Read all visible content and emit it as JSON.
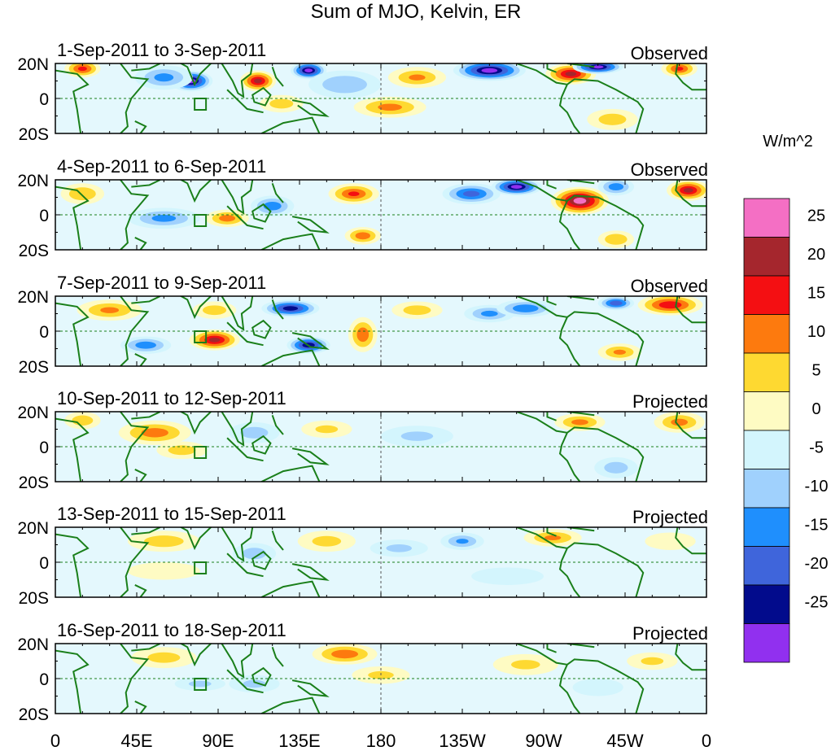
{
  "chart_data": {
    "type": "heatmap",
    "title": "Sum of MJO, Kelvin, ER",
    "units_label": "W/m^2",
    "x_ticks": [
      "0",
      "45E",
      "90E",
      "135E",
      "180",
      "135W",
      "90W",
      "45W",
      "0"
    ],
    "y_ticks": [
      "20N",
      "0",
      "20S"
    ],
    "x_range_deg_east": [
      0,
      360
    ],
    "y_range_deg": [
      -20,
      20
    ],
    "colorbar": {
      "labels": [
        "25",
        "20",
        "15",
        "10",
        "5",
        "0",
        "-5",
        "-10",
        "-15",
        "-20",
        "-25"
      ],
      "colors": [
        "#f46fc4",
        "#a5262d",
        "#f40f12",
        "#fd7a0e",
        "#fed931",
        "#fefbc3",
        "#d3f5fd",
        "#a0d1fd",
        "#1f8ffd",
        "#3f65db",
        "#020b8c",
        "#9130ef"
      ]
    },
    "panels": [
      {
        "label": "1-Sep-2011 to 3-Sep-2011",
        "kind": "Observed",
        "anomalies": [
          {
            "lon": 15,
            "lat": 17,
            "rx": 10,
            "ry": 5,
            "v": 17
          },
          {
            "lon": 75,
            "lat": 10,
            "rx": 12,
            "ry": 6,
            "v": -28
          },
          {
            "lon": 60,
            "lat": 12,
            "rx": 16,
            "ry": 7,
            "v": -12
          },
          {
            "lon": 112,
            "lat": 10,
            "rx": 10,
            "ry": 6,
            "v": 22
          },
          {
            "lon": 125,
            "lat": -3,
            "rx": 12,
            "ry": 5,
            "v": 8
          },
          {
            "lon": 140,
            "lat": 16,
            "rx": 10,
            "ry": 5,
            "v": -28
          },
          {
            "lon": 160,
            "lat": 8,
            "rx": 20,
            "ry": 8,
            "v": -10
          },
          {
            "lon": 185,
            "lat": -5,
            "rx": 20,
            "ry": 6,
            "v": 12
          },
          {
            "lon": 200,
            "lat": 12,
            "rx": 16,
            "ry": 6,
            "v": 11
          },
          {
            "lon": 240,
            "lat": 16,
            "rx": 20,
            "ry": 6,
            "v": -28
          },
          {
            "lon": 285,
            "lat": 14,
            "rx": 14,
            "ry": 6,
            "v": 22
          },
          {
            "lon": 300,
            "lat": 18,
            "rx": 14,
            "ry": 4,
            "v": -28
          },
          {
            "lon": 308,
            "lat": -12,
            "rx": 14,
            "ry": 6,
            "v": 8
          },
          {
            "lon": 345,
            "lat": 17,
            "rx": 10,
            "ry": 5,
            "v": 16
          }
        ]
      },
      {
        "label": "4-Sep-2011 to 6-Sep-2011",
        "kind": "Observed",
        "anomalies": [
          {
            "lon": 15,
            "lat": 12,
            "rx": 12,
            "ry": 6,
            "v": 10
          },
          {
            "lon": 60,
            "lat": -2,
            "rx": 20,
            "ry": 6,
            "v": -12
          },
          {
            "lon": 95,
            "lat": -2,
            "rx": 12,
            "ry": 5,
            "v": 13
          },
          {
            "lon": 120,
            "lat": 5,
            "rx": 12,
            "ry": 6,
            "v": -14
          },
          {
            "lon": 165,
            "lat": 12,
            "rx": 14,
            "ry": 6,
            "v": 16
          },
          {
            "lon": 170,
            "lat": -12,
            "rx": 10,
            "ry": 5,
            "v": 14
          },
          {
            "lon": 230,
            "lat": 12,
            "rx": 16,
            "ry": 6,
            "v": -18
          },
          {
            "lon": 255,
            "lat": 16,
            "rx": 14,
            "ry": 5,
            "v": -28
          },
          {
            "lon": 290,
            "lat": 8,
            "rx": 16,
            "ry": 8,
            "v": 28
          },
          {
            "lon": 310,
            "lat": 16,
            "rx": 10,
            "ry": 5,
            "v": -14
          },
          {
            "lon": 310,
            "lat": -14,
            "rx": 10,
            "ry": 5,
            "v": 10
          },
          {
            "lon": 350,
            "lat": 14,
            "rx": 12,
            "ry": 6,
            "v": 22
          }
        ]
      },
      {
        "label": "7-Sep-2011 to 9-Sep-2011",
        "kind": "Observed",
        "anomalies": [
          {
            "lon": 30,
            "lat": 12,
            "rx": 18,
            "ry": 6,
            "v": 11
          },
          {
            "lon": 50,
            "lat": -8,
            "rx": 14,
            "ry": 5,
            "v": -14
          },
          {
            "lon": 88,
            "lat": -5,
            "rx": 14,
            "ry": 6,
            "v": 22
          },
          {
            "lon": 88,
            "lat": 12,
            "rx": 12,
            "ry": 5,
            "v": 8
          },
          {
            "lon": 130,
            "lat": 13,
            "rx": 16,
            "ry": 5,
            "v": -24
          },
          {
            "lon": 140,
            "lat": -8,
            "rx": 12,
            "ry": 5,
            "v": -25
          },
          {
            "lon": 170,
            "lat": -2,
            "rx": 8,
            "ry": 10,
            "v": 14
          },
          {
            "lon": 200,
            "lat": 12,
            "rx": 14,
            "ry": 5,
            "v": 8
          },
          {
            "lon": 240,
            "lat": 10,
            "rx": 14,
            "ry": 5,
            "v": -12
          },
          {
            "lon": 260,
            "lat": 13,
            "rx": 16,
            "ry": 5,
            "v": -15
          },
          {
            "lon": 310,
            "lat": 16,
            "rx": 10,
            "ry": 4,
            "v": -20
          },
          {
            "lon": 312,
            "lat": -12,
            "rx": 12,
            "ry": 5,
            "v": 11
          },
          {
            "lon": 340,
            "lat": 15,
            "rx": 18,
            "ry": 6,
            "v": 20
          }
        ]
      },
      {
        "label": "10-Sep-2011 to 12-Sep-2011",
        "kind": "Projected",
        "anomalies": [
          {
            "lon": 15,
            "lat": 15,
            "rx": 10,
            "ry": 5,
            "v": 9
          },
          {
            "lon": 55,
            "lat": 8,
            "rx": 20,
            "ry": 7,
            "v": 13
          },
          {
            "lon": 70,
            "lat": -2,
            "rx": 14,
            "ry": 5,
            "v": 8
          },
          {
            "lon": 110,
            "lat": 8,
            "rx": 14,
            "ry": 6,
            "v": -8
          },
          {
            "lon": 150,
            "lat": 10,
            "rx": 14,
            "ry": 5,
            "v": 6
          },
          {
            "lon": 200,
            "lat": 6,
            "rx": 20,
            "ry": 6,
            "v": -6
          },
          {
            "lon": 290,
            "lat": 14,
            "rx": 14,
            "ry": 5,
            "v": 12
          },
          {
            "lon": 310,
            "lat": -12,
            "rx": 12,
            "ry": 6,
            "v": -8
          },
          {
            "lon": 345,
            "lat": 14,
            "rx": 14,
            "ry": 6,
            "v": 12
          }
        ]
      },
      {
        "label": "13-Sep-2011 to 15-Sep-2011",
        "kind": "Projected",
        "anomalies": [
          {
            "lon": 60,
            "lat": 12,
            "rx": 20,
            "ry": 6,
            "v": 8
          },
          {
            "lon": 60,
            "lat": -5,
            "rx": 20,
            "ry": 5,
            "v": 5
          },
          {
            "lon": 110,
            "lat": 5,
            "rx": 12,
            "ry": 6,
            "v": -8
          },
          {
            "lon": 150,
            "lat": 12,
            "rx": 16,
            "ry": 6,
            "v": 7
          },
          {
            "lon": 190,
            "lat": 8,
            "rx": 16,
            "ry": 5,
            "v": -6
          },
          {
            "lon": 225,
            "lat": 12,
            "rx": 12,
            "ry": 5,
            "v": -11
          },
          {
            "lon": 275,
            "lat": 14,
            "rx": 16,
            "ry": 5,
            "v": 11
          },
          {
            "lon": 250,
            "lat": -8,
            "rx": 20,
            "ry": 5,
            "v": -4
          },
          {
            "lon": 340,
            "lat": 12,
            "rx": 14,
            "ry": 5,
            "v": 5
          }
        ]
      },
      {
        "label": "16-Sep-2011 to 18-Sep-2011",
        "kind": "Projected",
        "anomalies": [
          {
            "lon": 60,
            "lat": 12,
            "rx": 18,
            "ry": 6,
            "v": 7
          },
          {
            "lon": 80,
            "lat": -3,
            "rx": 14,
            "ry": 4,
            "v": -6
          },
          {
            "lon": 110,
            "lat": -3,
            "rx": 14,
            "ry": 5,
            "v": -6
          },
          {
            "lon": 160,
            "lat": 14,
            "rx": 18,
            "ry": 6,
            "v": 14
          },
          {
            "lon": 180,
            "lat": 2,
            "rx": 16,
            "ry": 5,
            "v": 6
          },
          {
            "lon": 260,
            "lat": 8,
            "rx": 18,
            "ry": 6,
            "v": 6
          },
          {
            "lon": 300,
            "lat": -5,
            "rx": 14,
            "ry": 5,
            "v": -5
          },
          {
            "lon": 330,
            "lat": 10,
            "rx": 14,
            "ry": 5,
            "v": 6
          }
        ]
      }
    ]
  }
}
